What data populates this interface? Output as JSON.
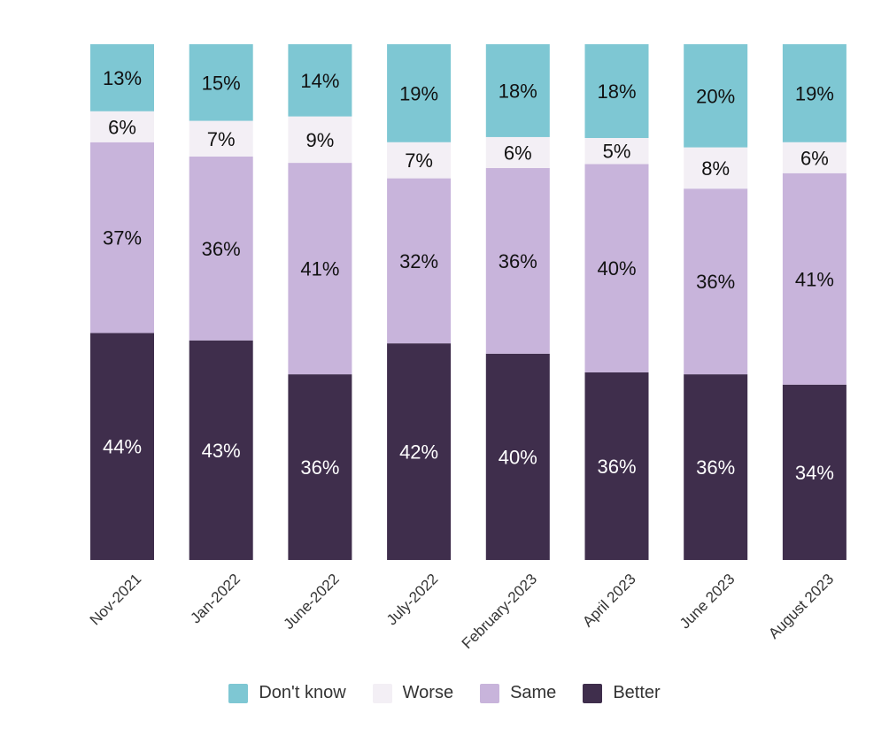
{
  "chart_data": {
    "type": "bar",
    "stacked": true,
    "normalized_percent": true,
    "categories": [
      "Nov-2021",
      "Jan-2022",
      "June-2022",
      "July-2022",
      "February-2023",
      "April 2023",
      "June 2023",
      "August 2023"
    ],
    "series": [
      {
        "name": "Better",
        "color": "#3f2e4c",
        "label_color": "#ffffff",
        "values": [
          44,
          43,
          36,
          42,
          40,
          36,
          36,
          34
        ]
      },
      {
        "name": "Same",
        "color": "#c8b4db",
        "label_color": "#111111",
        "values": [
          37,
          36,
          41,
          32,
          36,
          40,
          36,
          41
        ]
      },
      {
        "name": "Worse",
        "color": "#f3eff5",
        "label_color": "#111111",
        "values": [
          6,
          7,
          9,
          7,
          6,
          5,
          8,
          6
        ]
      },
      {
        "name": "Don't know",
        "color": "#7ec7d3",
        "label_color": "#111111",
        "values": [
          13,
          15,
          14,
          19,
          18,
          18,
          20,
          19
        ]
      }
    ],
    "value_suffix": "%",
    "legend_position": "bottom",
    "legend_order": [
      "Don't know",
      "Worse",
      "Same",
      "Better"
    ],
    "grid": false,
    "title": "",
    "xlabel": "",
    "ylabel": ""
  }
}
